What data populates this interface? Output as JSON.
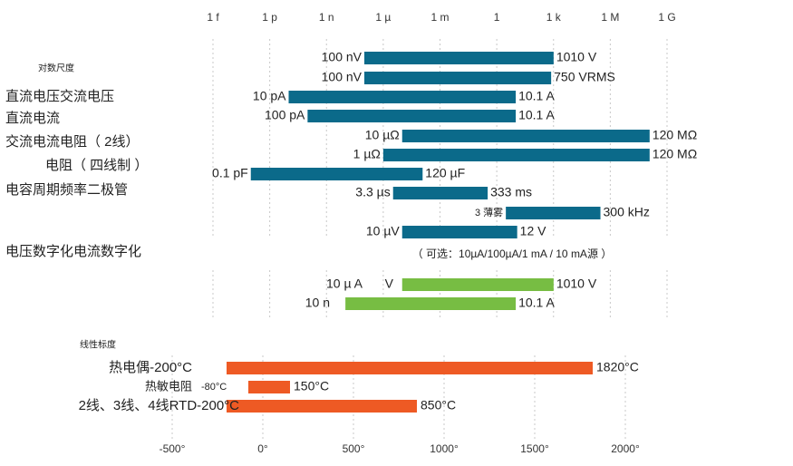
{
  "chart_data": {
    "type": "bar",
    "title": "",
    "scale_ticks": [
      "1 f",
      "1 p",
      "1 n",
      "1 µ",
      "1 m",
      "1",
      "1 k",
      "1 M",
      "1 G"
    ],
    "section_labels": {
      "log_scale": "对数尺度",
      "digitize": "电压数字化电流数字化",
      "linear_scale": "线性标度"
    },
    "optional_note": "（ 可选：10µA/100µA/1 mA / 10 mA源 ）",
    "side_labels": [
      {
        "text": "直流电压交流电压",
        "row": 2
      },
      {
        "text": "直流电流",
        "row": 3
      },
      {
        "text": "交流电流电阻（ 2线）",
        "row": 4
      },
      {
        "text": "电阻（ 四线制 ）",
        "row": 5
      },
      {
        "text": "电容周期频率二极管",
        "row": 6
      }
    ],
    "log_ranges": [
      {
        "low_label": "100 nV",
        "high_label": "1010 V",
        "low_decade": -7,
        "high_decade": 3.0043
      },
      {
        "low_label": "100 nV",
        "high_label": "750 VRMS",
        "low_decade": -7,
        "high_decade": 2.875
      },
      {
        "low_label": "10 pA",
        "high_label": "10.1 A",
        "low_decade": -11,
        "high_decade": 1.0043
      },
      {
        "low_label": "100 pA",
        "high_label": "10.1 A",
        "low_decade": -10,
        "high_decade": 1.0043
      },
      {
        "low_label": "10 µΩ",
        "high_label": "120 MΩ",
        "low_decade": -5,
        "high_decade": 8.08
      },
      {
        "low_label": "1 µΩ",
        "high_label": "120 MΩ",
        "low_decade": -6,
        "high_decade": 8.08
      },
      {
        "low_label": "0.1 pF",
        "high_label": "120 µF",
        "low_decade": -13,
        "high_decade": -3.92
      },
      {
        "low_label": "3.3 µs",
        "high_label": "333 ms",
        "low_decade": -5.48,
        "high_decade": -0.48
      },
      {
        "low_label": "3 薄雾",
        "high_label": "300 kHz",
        "low_decade": 0.48,
        "high_decade": 5.48
      },
      {
        "low_label": "10 µV",
        "high_label": "12 V",
        "low_decade": -5,
        "high_decade": 1.08
      }
    ],
    "digitize_ranges": [
      {
        "low_label": "10 µ A",
        "mid_label": "V",
        "high_label": "1010 V",
        "low_decade": -5,
        "high_decade": 3.0043
      },
      {
        "low_label": "10 n",
        "mid_label": "",
        "high_label": "10.1 A",
        "low_decade": -8,
        "high_decade": 1.0043
      }
    ],
    "linear_axis": {
      "unit": "°C",
      "ticks": [
        "-500°",
        "0°",
        "500°",
        "1000°",
        "1500°",
        "2000°"
      ],
      "tick_values": [
        -500,
        0,
        500,
        1000,
        1500,
        2000
      ]
    },
    "temperature_ranges": [
      {
        "label": "热电偶-200°C",
        "low": -200,
        "high": 1820,
        "high_label": "1820°C",
        "low_label": ""
      },
      {
        "label": "热敏电阻",
        "low": -80,
        "high": 150,
        "high_label": "150°C",
        "low_label": "-80°C"
      },
      {
        "label": "2线、3线、4线RTD-200°C",
        "low": -200,
        "high": 850,
        "high_label": "850°C",
        "low_label": ""
      }
    ],
    "colors": {
      "log": "#0b6a8a",
      "digitize": "#77bd43",
      "temperature": "#ee5a24",
      "grid": "#c8c8c8"
    }
  }
}
